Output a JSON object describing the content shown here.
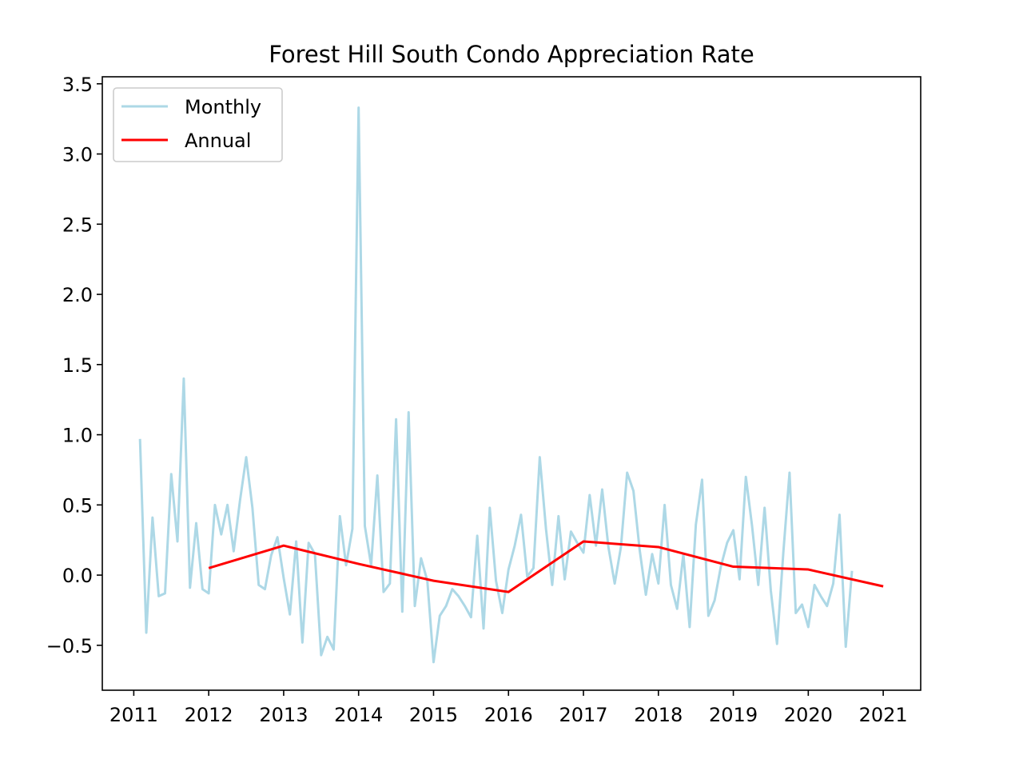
{
  "chart_data": {
    "type": "line",
    "title": "Forest Hill South Condo Appreciation Rate",
    "xlabel": "",
    "ylabel": "",
    "xlim": [
      2010.58,
      2021.5
    ],
    "ylim": [
      -0.82,
      3.55
    ],
    "x_ticks": [
      "2011",
      "2012",
      "2013",
      "2014",
      "2015",
      "2016",
      "2017",
      "2018",
      "2019",
      "2020",
      "2021"
    ],
    "y_ticks": [
      "−0.5",
      "0.0",
      "0.5",
      "1.0",
      "1.5",
      "2.0",
      "2.5",
      "3.0",
      "3.5"
    ],
    "grid": false,
    "legend_position": "top-left",
    "series": [
      {
        "name": "Monthly",
        "color": "#add8e6",
        "x": [
          2011.083,
          2011.167,
          2011.25,
          2011.333,
          2011.417,
          2011.5,
          2011.583,
          2011.667,
          2011.75,
          2011.833,
          2011.917,
          2012.0,
          2012.083,
          2012.167,
          2012.25,
          2012.333,
          2012.417,
          2012.5,
          2012.583,
          2012.667,
          2012.75,
          2012.833,
          2012.917,
          2013.0,
          2013.083,
          2013.167,
          2013.25,
          2013.333,
          2013.417,
          2013.5,
          2013.583,
          2013.667,
          2013.75,
          2013.833,
          2013.917,
          2014.0,
          2014.083,
          2014.167,
          2014.25,
          2014.333,
          2014.417,
          2014.5,
          2014.583,
          2014.667,
          2014.75,
          2014.833,
          2014.917,
          2015.0,
          2015.083,
          2015.167,
          2015.25,
          2015.333,
          2015.417,
          2015.5,
          2015.583,
          2015.667,
          2015.75,
          2015.833,
          2015.917,
          2016.0,
          2016.083,
          2016.167,
          2016.25,
          2016.333,
          2016.417,
          2016.5,
          2016.583,
          2016.667,
          2016.75,
          2016.833,
          2016.917,
          2017.0,
          2017.083,
          2017.167,
          2017.25,
          2017.333,
          2017.417,
          2017.5,
          2017.583,
          2017.667,
          2017.75,
          2017.833,
          2017.917,
          2018.0,
          2018.083,
          2018.167,
          2018.25,
          2018.333,
          2018.417,
          2018.5,
          2018.583,
          2018.667,
          2018.75,
          2018.833,
          2018.917,
          2019.0,
          2019.083,
          2019.167,
          2019.25,
          2019.333,
          2019.417,
          2019.5,
          2019.583,
          2019.667,
          2019.75,
          2019.833,
          2019.917,
          2020.0,
          2020.083,
          2020.167,
          2020.25,
          2020.333,
          2020.417,
          2020.5,
          2020.583
        ],
        "y": [
          0.97,
          -0.41,
          0.41,
          -0.15,
          -0.13,
          0.72,
          0.24,
          1.4,
          -0.09,
          0.37,
          -0.1,
          -0.13,
          0.5,
          0.29,
          0.5,
          0.17,
          0.53,
          0.84,
          0.48,
          -0.07,
          -0.1,
          0.14,
          0.27,
          -0.02,
          -0.28,
          0.24,
          -0.48,
          0.23,
          0.15,
          -0.57,
          -0.44,
          -0.53,
          0.42,
          0.07,
          0.33,
          3.33,
          0.35,
          0.07,
          0.71,
          -0.12,
          -0.06,
          1.11,
          -0.26,
          1.16,
          -0.22,
          0.12,
          -0.04,
          -0.62,
          -0.29,
          -0.22,
          -0.1,
          -0.15,
          -0.22,
          -0.3,
          0.28,
          -0.38,
          0.48,
          -0.04,
          -0.27,
          0.04,
          0.21,
          0.43,
          -0.01,
          0.05,
          0.84,
          0.33,
          -0.07,
          0.42,
          -0.03,
          0.31,
          0.23,
          0.16,
          0.57,
          0.21,
          0.61,
          0.2,
          -0.06,
          0.2,
          0.73,
          0.6,
          0.18,
          -0.14,
          0.15,
          -0.06,
          0.5,
          -0.07,
          -0.24,
          0.15,
          -0.37,
          0.36,
          0.68,
          -0.29,
          -0.18,
          0.06,
          0.23,
          0.32,
          -0.03,
          0.7,
          0.35,
          -0.07,
          0.48,
          -0.11,
          -0.49,
          0.16,
          0.73,
          -0.27,
          -0.21,
          -0.37,
          -0.07,
          -0.15,
          -0.22,
          -0.06,
          0.43,
          -0.51,
          0.03
        ]
      },
      {
        "name": "Annual",
        "color": "#ff0000",
        "x": [
          2012,
          2013,
          2014,
          2015,
          2016,
          2017,
          2018,
          2019,
          2020,
          2021
        ],
        "y": [
          0.05,
          0.21,
          0.08,
          -0.04,
          -0.12,
          0.24,
          0.2,
          0.06,
          0.04,
          -0.08
        ]
      }
    ]
  }
}
